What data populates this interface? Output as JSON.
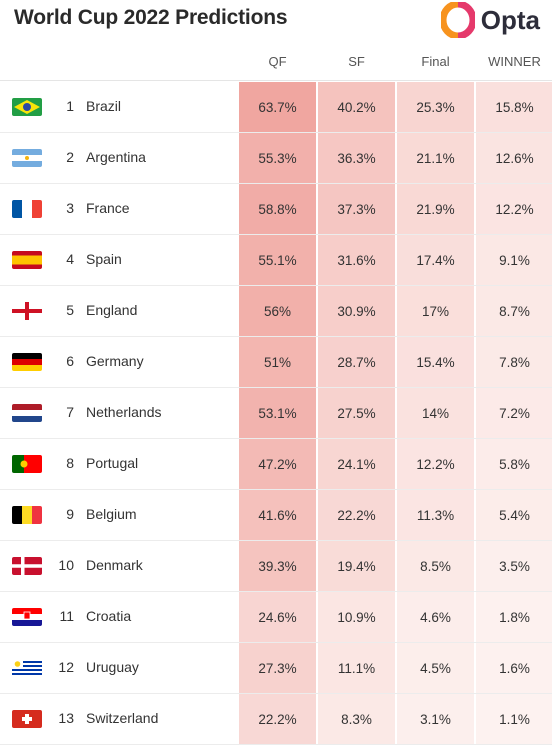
{
  "header": {
    "title": "World Cup 2022 Predictions",
    "logo_text": "Opta"
  },
  "colors": {
    "heat_low": "#fdf3f1",
    "heat_high": "#f0a6a0",
    "logo_orange": "#f7931e",
    "logo_pink": "#e5396b"
  },
  "chart_data": {
    "type": "table",
    "title": "World Cup 2022 Predictions",
    "columns": [
      "QF",
      "SF",
      "Final",
      "WINNER"
    ],
    "rows": [
      {
        "rank": "1",
        "team": "Brazil",
        "flag_icon": "brazil-flag-icon",
        "values": [
          "63.7%",
          "40.2%",
          "25.3%",
          "15.8%"
        ]
      },
      {
        "rank": "2",
        "team": "Argentina",
        "flag_icon": "argentina-flag-icon",
        "values": [
          "55.3%",
          "36.3%",
          "21.1%",
          "12.6%"
        ]
      },
      {
        "rank": "3",
        "team": "France",
        "flag_icon": "france-flag-icon",
        "values": [
          "58.8%",
          "37.3%",
          "21.9%",
          "12.2%"
        ]
      },
      {
        "rank": "4",
        "team": "Spain",
        "flag_icon": "spain-flag-icon",
        "values": [
          "55.1%",
          "31.6%",
          "17.4%",
          "9.1%"
        ]
      },
      {
        "rank": "5",
        "team": "England",
        "flag_icon": "england-flag-icon",
        "values": [
          "56%",
          "30.9%",
          "17%",
          "8.7%"
        ]
      },
      {
        "rank": "6",
        "team": "Germany",
        "flag_icon": "germany-flag-icon",
        "values": [
          "51%",
          "28.7%",
          "15.4%",
          "7.8%"
        ]
      },
      {
        "rank": "7",
        "team": "Netherlands",
        "flag_icon": "netherlands-flag-icon",
        "values": [
          "53.1%",
          "27.5%",
          "14%",
          "7.2%"
        ]
      },
      {
        "rank": "8",
        "team": "Portugal",
        "flag_icon": "portugal-flag-icon",
        "values": [
          "47.2%",
          "24.1%",
          "12.2%",
          "5.8%"
        ]
      },
      {
        "rank": "9",
        "team": "Belgium",
        "flag_icon": "belgium-flag-icon",
        "values": [
          "41.6%",
          "22.2%",
          "11.3%",
          "5.4%"
        ]
      },
      {
        "rank": "10",
        "team": "Denmark",
        "flag_icon": "denmark-flag-icon",
        "values": [
          "39.3%",
          "19.4%",
          "8.5%",
          "3.5%"
        ]
      },
      {
        "rank": "11",
        "team": "Croatia",
        "flag_icon": "croatia-flag-icon",
        "values": [
          "24.6%",
          "10.9%",
          "4.6%",
          "1.8%"
        ]
      },
      {
        "rank": "12",
        "team": "Uruguay",
        "flag_icon": "uruguay-flag-icon",
        "values": [
          "27.3%",
          "11.1%",
          "4.5%",
          "1.6%"
        ]
      },
      {
        "rank": "13",
        "team": "Switzerland",
        "flag_icon": "switzerland-flag-icon",
        "values": [
          "22.2%",
          "8.3%",
          "3.1%",
          "1.1%"
        ]
      }
    ]
  }
}
